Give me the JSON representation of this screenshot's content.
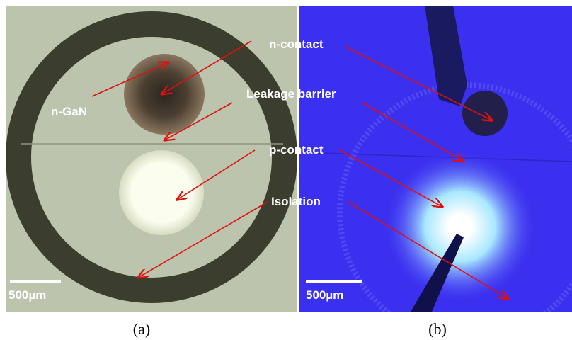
{
  "panels": [
    {
      "caption": "(a)",
      "scale_bar": "500µm",
      "labels": [
        "n-GaN"
      ]
    },
    {
      "caption": "(b)",
      "scale_bar": "500µm",
      "labels": [
        "n-contact",
        "Leakage barrier",
        "p-contact",
        "Isolation"
      ]
    }
  ]
}
